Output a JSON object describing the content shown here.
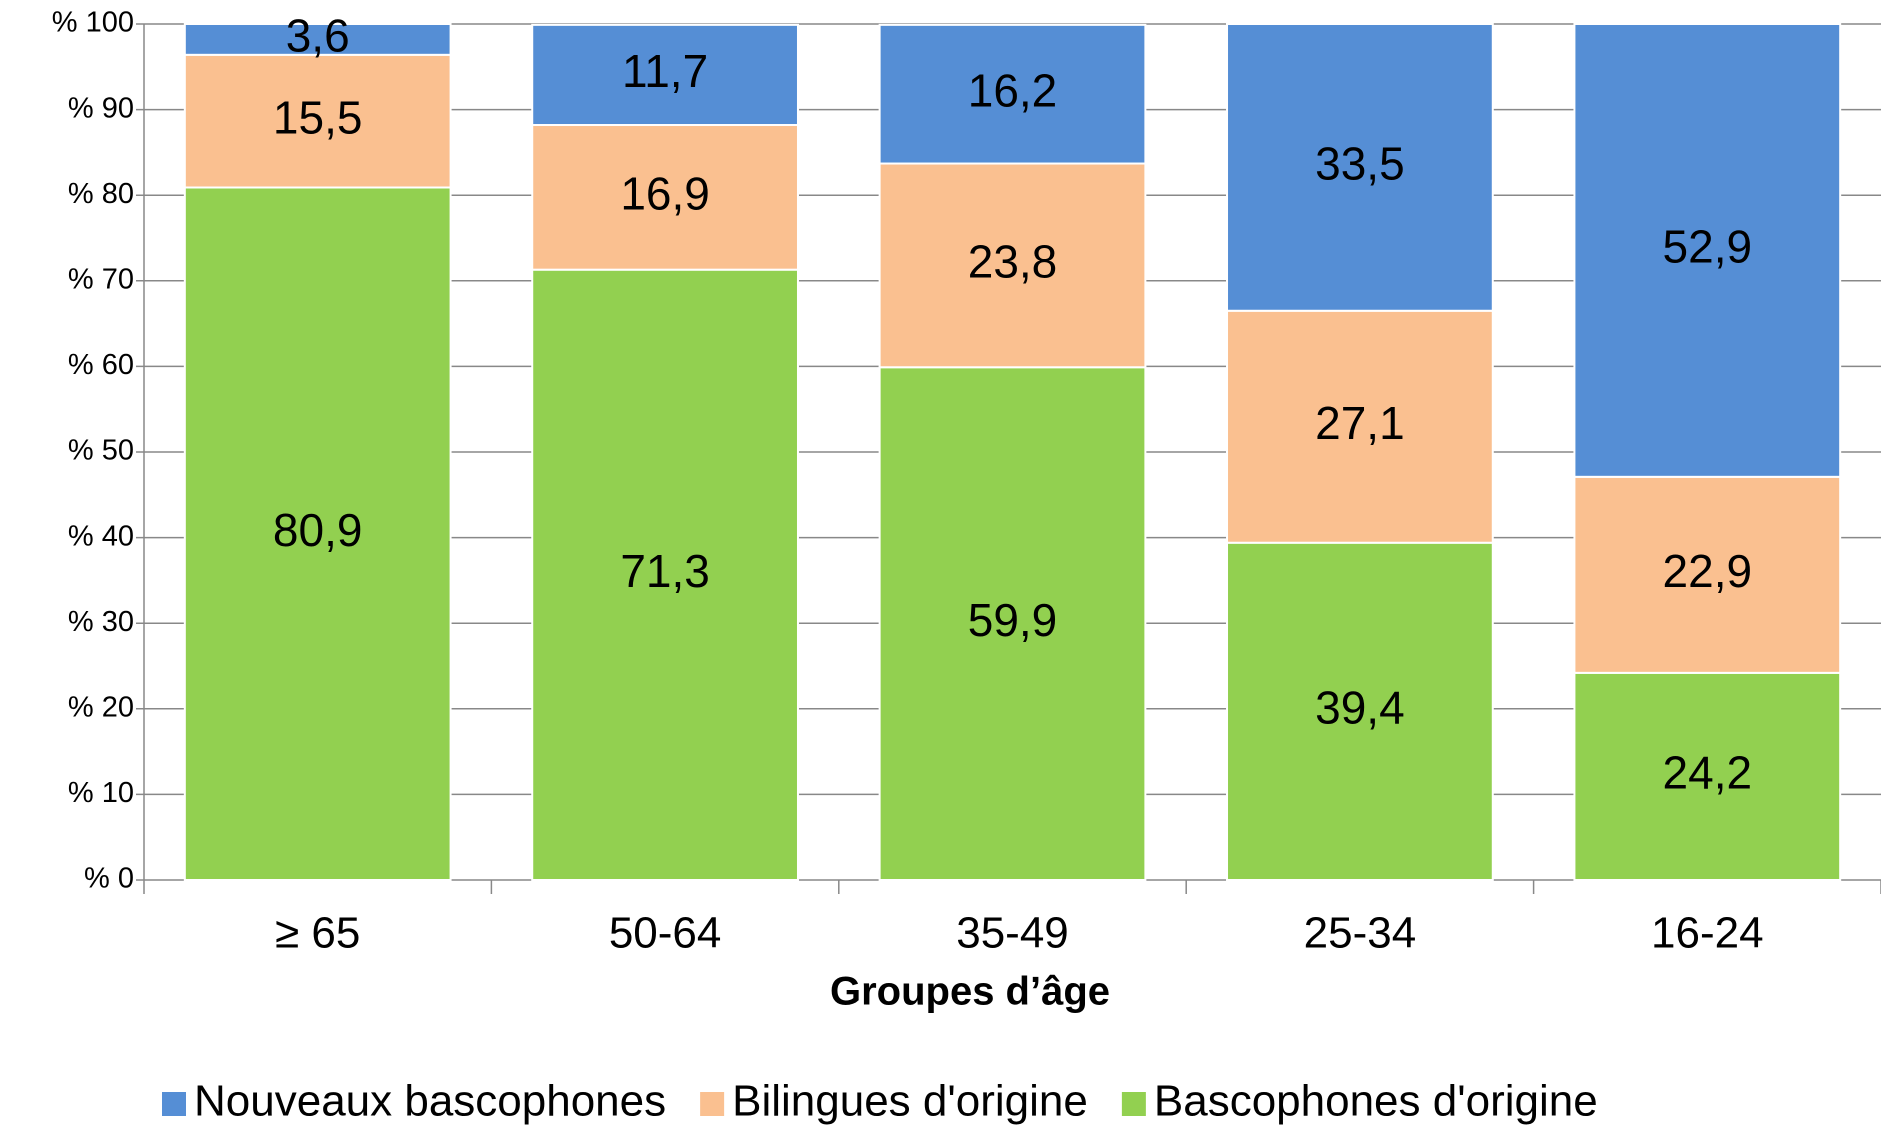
{
  "chart_data": {
    "type": "stacked_bar",
    "x_label": "Groupes d’âge",
    "categories": [
      "≥ 65",
      "50-64",
      "35-49",
      "25-34",
      "16-24"
    ],
    "series": [
      {
        "name": "Nouveaux bascophones",
        "color": "#558ed5",
        "values": [
          3.6,
          11.7,
          16.2,
          33.5,
          52.9
        ],
        "value_labels": [
          "3,6",
          "11,7",
          "16,2",
          "33,5",
          "52,9"
        ]
      },
      {
        "name": "Bilingues d'origine",
        "color": "#fac090",
        "values": [
          15.5,
          16.9,
          23.8,
          27.1,
          22.9
        ],
        "value_labels": [
          "15,5",
          "16,9",
          "23,8",
          "27,1",
          "22,9"
        ]
      },
      {
        "name": "Bascophones d'origine",
        "color": "#92d050",
        "values": [
          80.9,
          71.3,
          59.9,
          39.4,
          24.2
        ],
        "value_labels": [
          "80,9",
          "71,3",
          "59,9",
          "39,4",
          "24,2"
        ]
      }
    ],
    "ylim": [
      0,
      100
    ],
    "yticks": [
      {
        "value": 0,
        "label": "% 0"
      },
      {
        "value": 10,
        "label": "% 10"
      },
      {
        "value": 20,
        "label": "% 20"
      },
      {
        "value": 30,
        "label": "% 30"
      },
      {
        "value": 40,
        "label": "% 40"
      },
      {
        "value": 50,
        "label": "% 50"
      },
      {
        "value": 60,
        "label": "% 60"
      },
      {
        "value": 70,
        "label": "% 70"
      },
      {
        "value": 80,
        "label": "% 80"
      },
      {
        "value": 90,
        "label": "% 90"
      },
      {
        "value": 100,
        "label": "% 100"
      }
    ],
    "grid": true,
    "legend": "bottom"
  }
}
